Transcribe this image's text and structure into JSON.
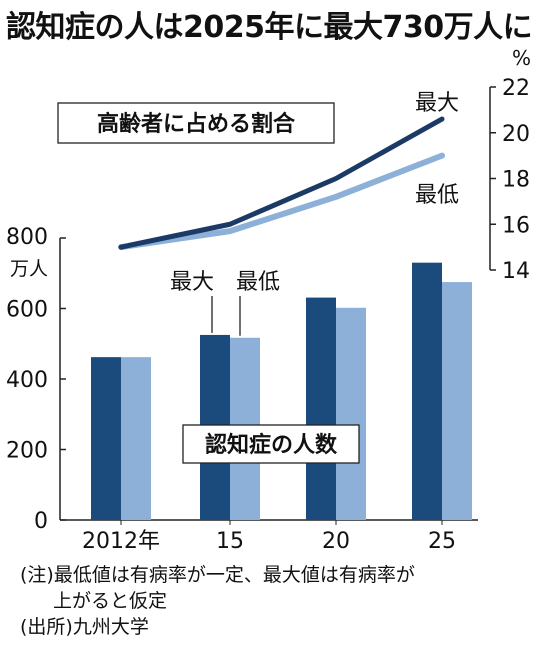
{
  "title": "認知症の人は2025年に最大730万人に",
  "chart_data": [
    {
      "type": "line",
      "label": "高齢者に占める割合",
      "y_unit": "%",
      "ylim": [
        14,
        22
      ],
      "yticks": [
        14,
        16,
        18,
        20,
        22
      ],
      "x": [
        2012,
        2015,
        2020,
        2025
      ],
      "series": [
        {
          "name": "最大",
          "values": [
            15.0,
            16.0,
            18.0,
            20.6
          ],
          "color": "#1b3a66"
        },
        {
          "name": "最低",
          "values": [
            15.0,
            15.7,
            17.2,
            19.0
          ],
          "color": "#8db0d8"
        }
      ]
    },
    {
      "type": "bar",
      "label": "認知症の人数",
      "y_unit": "万人",
      "ylim": [
        0,
        800
      ],
      "yticks": [
        0,
        200,
        400,
        600,
        800
      ],
      "categories": [
        "2012年",
        "15",
        "20",
        "25"
      ],
      "series": [
        {
          "name": "最大",
          "values": [
            462,
            525,
            631,
            730
          ],
          "color": "#1b4a7c"
        },
        {
          "name": "最低",
          "values": [
            462,
            517,
            602,
            675
          ],
          "color": "#8db0d8"
        }
      ]
    }
  ],
  "notes": [
    "(注)最低値は有病率が一定、最大値は有病率が",
    "上がると仮定",
    "(出所)九州大学"
  ]
}
